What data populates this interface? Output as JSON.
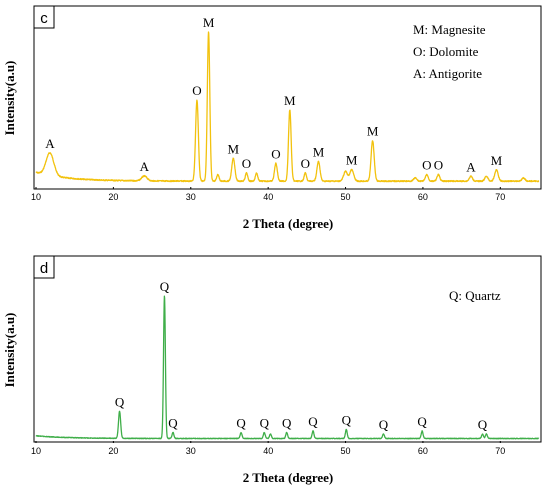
{
  "chart_data": [
    {
      "panel": "c",
      "type": "line",
      "color": "#f2c20e",
      "xlabel": "2 Theta (degree)",
      "ylabel": "Intensity(a.u)",
      "xlim": [
        10,
        75
      ],
      "xticks": [
        10,
        20,
        30,
        40,
        50,
        60,
        70
      ],
      "legend": [
        "M: Magnesite",
        "O: Dolomite",
        "A: Antigorite"
      ],
      "legend_position": "top-right",
      "baseline": 0.03,
      "peaks": [
        {
          "x": 11.8,
          "h": 0.14,
          "w": 0.5,
          "label": "A"
        },
        {
          "x": 24.0,
          "h": 0.03,
          "w": 0.35,
          "label": "A"
        },
        {
          "x": 30.8,
          "h": 0.5,
          "w": 0.18,
          "label": "O"
        },
        {
          "x": 32.3,
          "h": 0.92,
          "w": 0.16,
          "label": "M"
        },
        {
          "x": 33.5,
          "h": 0.04,
          "w": 0.15,
          "label": ""
        },
        {
          "x": 35.5,
          "h": 0.14,
          "w": 0.2,
          "label": "M"
        },
        {
          "x": 37.2,
          "h": 0.05,
          "w": 0.15,
          "label": "O"
        },
        {
          "x": 38.5,
          "h": 0.05,
          "w": 0.15,
          "label": ""
        },
        {
          "x": 41.0,
          "h": 0.11,
          "w": 0.18,
          "label": "O"
        },
        {
          "x": 42.8,
          "h": 0.44,
          "w": 0.17,
          "label": "M"
        },
        {
          "x": 44.8,
          "h": 0.05,
          "w": 0.15,
          "label": "O"
        },
        {
          "x": 46.5,
          "h": 0.12,
          "w": 0.2,
          "label": "M"
        },
        {
          "x": 50.0,
          "h": 0.06,
          "w": 0.25,
          "label": ""
        },
        {
          "x": 50.8,
          "h": 0.07,
          "w": 0.25,
          "label": "M"
        },
        {
          "x": 53.5,
          "h": 0.25,
          "w": 0.2,
          "label": "M"
        },
        {
          "x": 59.0,
          "h": 0.02,
          "w": 0.2,
          "label": ""
        },
        {
          "x": 60.5,
          "h": 0.04,
          "w": 0.18,
          "label": "O"
        },
        {
          "x": 62.0,
          "h": 0.04,
          "w": 0.18,
          "label": "O"
        },
        {
          "x": 66.2,
          "h": 0.03,
          "w": 0.2,
          "label": "A"
        },
        {
          "x": 68.2,
          "h": 0.03,
          "w": 0.2,
          "label": ""
        },
        {
          "x": 69.5,
          "h": 0.07,
          "w": 0.22,
          "label": "M"
        },
        {
          "x": 73.0,
          "h": 0.02,
          "w": 0.2,
          "label": ""
        }
      ]
    },
    {
      "panel": "d",
      "type": "line",
      "color": "#3fae49",
      "xlabel": "2 Theta (degree)",
      "ylabel": "Intensity(a.u)",
      "xlim": [
        10,
        75
      ],
      "xticks": [
        10,
        20,
        30,
        40,
        50,
        60,
        70
      ],
      "legend": [
        "Q: Quartz"
      ],
      "legend_position": "top-right",
      "baseline": 0.01,
      "peaks": [
        {
          "x": 20.8,
          "h": 0.18,
          "w": 0.14,
          "label": "Q"
        },
        {
          "x": 26.6,
          "h": 0.95,
          "w": 0.12,
          "label": "Q"
        },
        {
          "x": 27.7,
          "h": 0.04,
          "w": 0.12,
          "label": "Q"
        },
        {
          "x": 36.5,
          "h": 0.04,
          "w": 0.12,
          "label": "Q"
        },
        {
          "x": 39.5,
          "h": 0.04,
          "w": 0.12,
          "label": "Q"
        },
        {
          "x": 40.3,
          "h": 0.03,
          "w": 0.12,
          "label": ""
        },
        {
          "x": 42.4,
          "h": 0.04,
          "w": 0.12,
          "label": "Q"
        },
        {
          "x": 45.8,
          "h": 0.05,
          "w": 0.12,
          "label": "Q"
        },
        {
          "x": 50.1,
          "h": 0.06,
          "w": 0.12,
          "label": "Q"
        },
        {
          "x": 54.9,
          "h": 0.03,
          "w": 0.12,
          "label": "Q"
        },
        {
          "x": 59.9,
          "h": 0.05,
          "w": 0.12,
          "label": "Q"
        },
        {
          "x": 67.7,
          "h": 0.03,
          "w": 0.12,
          "label": "Q"
        },
        {
          "x": 68.2,
          "h": 0.03,
          "w": 0.12,
          "label": ""
        }
      ]
    }
  ]
}
